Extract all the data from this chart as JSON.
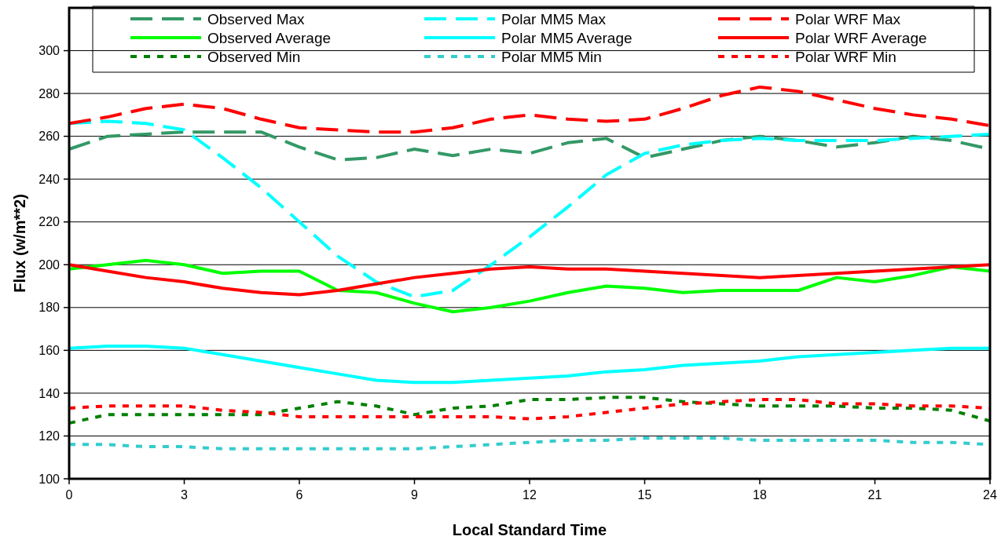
{
  "chart_data": {
    "type": "line",
    "xlabel": "Local Standard Time",
    "ylabel": "Flux (w/m**2)",
    "x": [
      0,
      1,
      2,
      3,
      4,
      5,
      6,
      7,
      8,
      9,
      10,
      11,
      12,
      13,
      14,
      15,
      16,
      17,
      18,
      19,
      20,
      21,
      22,
      23,
      24
    ],
    "xlim": [
      0,
      24
    ],
    "xticks": [
      0,
      3,
      6,
      9,
      12,
      15,
      18,
      21,
      24
    ],
    "ylim": [
      100,
      320
    ],
    "yticks": [
      100,
      120,
      140,
      160,
      180,
      200,
      220,
      240,
      260,
      280,
      300
    ],
    "grid": "y",
    "legend": "top",
    "marker": "none",
    "series": [
      {
        "name": "Observed Max",
        "color": "#339966",
        "line_style": "dashed",
        "values": [
          254,
          260,
          261,
          262,
          262,
          262,
          255,
          249,
          250,
          254,
          251,
          254,
          252,
          257,
          259,
          250,
          254,
          258,
          260,
          258,
          255,
          257,
          260,
          258,
          254
        ]
      },
      {
        "name": "Polar MM5 Max",
        "color": "#00ffff",
        "line_style": "dashed",
        "values": [
          266,
          267,
          266,
          263,
          250,
          236,
          220,
          204,
          192,
          185,
          188,
          200,
          213,
          227,
          242,
          252,
          256,
          258,
          259,
          258,
          258,
          258,
          259,
          260,
          261
        ]
      },
      {
        "name": "Polar WRF Max",
        "color": "#ff0000",
        "line_style": "dashed",
        "values": [
          266,
          269,
          273,
          275,
          273,
          268,
          264,
          263,
          262,
          262,
          264,
          268,
          270,
          268,
          267,
          268,
          273,
          279,
          283,
          281,
          277,
          273,
          270,
          268,
          265
        ]
      },
      {
        "name": "Observed Average",
        "color": "#00ff00",
        "line_style": "solid",
        "values": [
          198,
          200,
          202,
          200,
          196,
          197,
          197,
          188,
          187,
          182,
          178,
          180,
          183,
          187,
          190,
          189,
          187,
          188,
          188,
          188,
          194,
          192,
          195,
          199,
          197
        ]
      },
      {
        "name": "Polar MM5 Average",
        "color": "#00ffff",
        "line_style": "solid",
        "values": [
          161,
          162,
          162,
          161,
          158,
          155,
          152,
          149,
          146,
          145,
          145,
          146,
          147,
          148,
          150,
          151,
          153,
          154,
          155,
          157,
          158,
          159,
          160,
          161,
          161
        ]
      },
      {
        "name": "Polar WRF Average",
        "color": "#ff0000",
        "line_style": "solid",
        "values": [
          200,
          197,
          194,
          192,
          189,
          187,
          186,
          188,
          191,
          194,
          196,
          198,
          199,
          198,
          198,
          197,
          196,
          195,
          194,
          195,
          196,
          197,
          198,
          199,
          200
        ]
      },
      {
        "name": "Observed Min",
        "color": "#008000",
        "line_style": "dotted",
        "values": [
          126,
          130,
          130,
          130,
          130,
          130,
          133,
          136,
          134,
          130,
          133,
          134,
          137,
          137,
          138,
          138,
          136,
          135,
          134,
          134,
          134,
          133,
          133,
          132,
          127
        ]
      },
      {
        "name": "Polar MM5 Min",
        "color": "#33cccc",
        "line_style": "dotted",
        "values": [
          116,
          116,
          115,
          115,
          114,
          114,
          114,
          114,
          114,
          114,
          115,
          116,
          117,
          118,
          118,
          119,
          119,
          119,
          118,
          118,
          118,
          118,
          117,
          117,
          116
        ]
      },
      {
        "name": "Polar WRF Min",
        "color": "#ff0000",
        "line_style": "dotted",
        "values": [
          133,
          134,
          134,
          134,
          132,
          131,
          129,
          129,
          129,
          129,
          129,
          129,
          128,
          129,
          131,
          133,
          135,
          136,
          137,
          137,
          135,
          135,
          134,
          134,
          133
        ]
      }
    ]
  }
}
